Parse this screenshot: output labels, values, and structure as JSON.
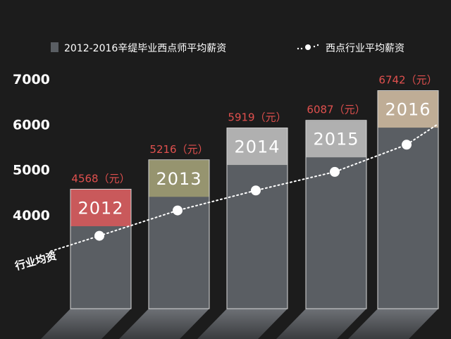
{
  "chart_data": {
    "type": "bar",
    "categories": [
      "2012",
      "2013",
      "2014",
      "2015",
      "2016"
    ],
    "series": [
      {
        "name": "2012-2016辛缇毕业西点师平均薪资",
        "values": [
          4568,
          5216,
          5919,
          6087,
          6742
        ],
        "value_labels": [
          "4568（元）",
          "5216（元）",
          "5919（元）",
          "6087（元）",
          "6742（元）"
        ]
      },
      {
        "name": "西点行业平均薪资",
        "type": "line",
        "values": [
          3540,
          4100,
          4540,
          4950,
          5550
        ]
      }
    ],
    "y_ticks": [
      "7000",
      "6000",
      "5000",
      "4000"
    ],
    "ylim": [
      2000,
      7300
    ],
    "line_label": "行业均资",
    "legend_position": "top",
    "colors": {
      "background": "#1c1c1c",
      "bar_body": "#5a5e63",
      "value_label": "#e0504e",
      "cap": [
        "#c9595b",
        "#96946f",
        "#b0b0b0",
        "#b0b0b0",
        "#bfad96"
      ]
    }
  }
}
